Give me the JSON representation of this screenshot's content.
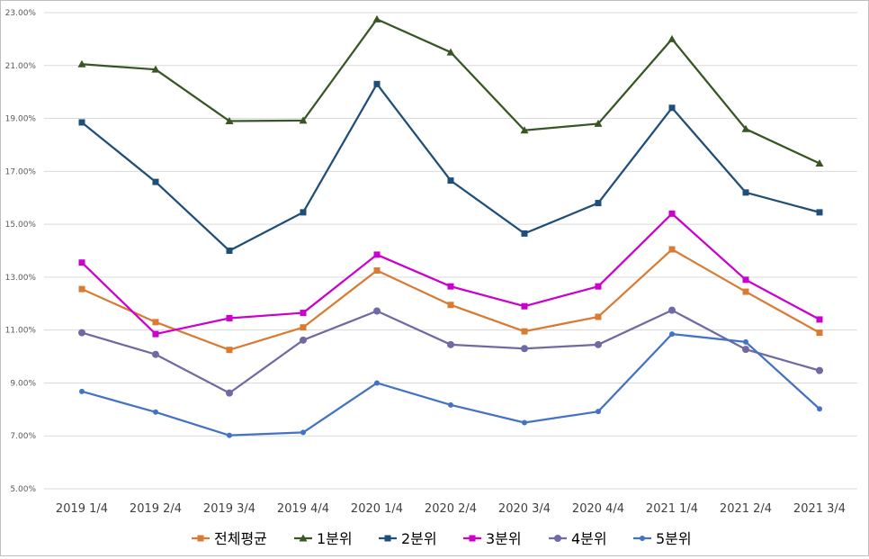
{
  "chart_data": {
    "type": "line",
    "categories": [
      "2019 1/4",
      "2019 2/4",
      "2019 3/4",
      "2019 4/4",
      "2020 1/4",
      "2020 2/4",
      "2020 3/4",
      "2020 4/4",
      "2021 1/4",
      "2021 2/4",
      "2021 3/4"
    ],
    "ylim": [
      5,
      23
    ],
    "yticks": [
      5,
      7,
      9,
      11,
      13,
      15,
      17,
      19,
      21,
      23
    ],
    "ytick_labels": [
      "5.00%",
      "7.00%",
      "9.00%",
      "11.00%",
      "13.00%",
      "15.00%",
      "17.00%",
      "19.00%",
      "21.00%",
      "23.00%"
    ],
    "grid": true,
    "legend_position": "bottom",
    "series": [
      {
        "name": "전체평균",
        "color": "#D97B33",
        "marker": "square",
        "values": [
          12.55,
          11.3,
          10.25,
          11.1,
          13.25,
          11.95,
          10.95,
          11.5,
          14.05,
          12.45,
          10.9
        ]
      },
      {
        "name": "1분위",
        "color": "#375623",
        "marker": "triangle",
        "values": [
          21.05,
          20.85,
          18.9,
          18.92,
          22.75,
          21.5,
          18.55,
          18.8,
          22.0,
          18.6,
          17.3
        ]
      },
      {
        "name": "2분위",
        "color": "#1F4E79",
        "marker": "square",
        "values": [
          18.85,
          16.6,
          14.0,
          15.45,
          20.3,
          16.65,
          14.65,
          15.8,
          19.4,
          16.2,
          15.45
        ]
      },
      {
        "name": "3분위",
        "color": "#CC00CC",
        "marker": "square",
        "values": [
          13.55,
          10.85,
          11.45,
          11.65,
          13.85,
          12.65,
          11.9,
          12.65,
          15.4,
          12.9,
          11.4
        ]
      },
      {
        "name": "4분위",
        "color": "#6F6AA3",
        "marker": "circle",
        "values": [
          10.9,
          10.08,
          8.62,
          10.62,
          11.72,
          10.45,
          10.3,
          10.45,
          11.75,
          10.27,
          9.47
        ]
      },
      {
        "name": "5분위",
        "color": "#4472C4",
        "marker": "circle-small",
        "values": [
          8.68,
          7.9,
          7.02,
          7.13,
          9.0,
          8.17,
          7.5,
          7.92,
          10.85,
          10.55,
          8.02
        ]
      }
    ]
  }
}
